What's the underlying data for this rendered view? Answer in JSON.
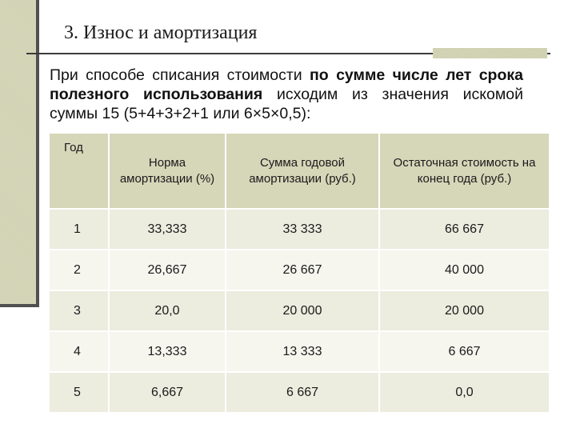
{
  "slide": {
    "title": "3. Износ и амортизация",
    "intro": {
      "part1": "При способе списания стоимости ",
      "bold1": "по сумме числе лет срока полезного использования",
      "part2": " исходим из значения искомой суммы 15 (5+4+3+2+1 или 6×5×0,5):"
    }
  },
  "table": {
    "headers": [
      "Год",
      "Норма амортизации (%)",
      "Сумма годовой амортизации (руб.)",
      "Остаточная стоимость на конец года (руб.)"
    ],
    "rows": [
      [
        "1",
        "33,333",
        "33 333",
        "66 667"
      ],
      [
        "2",
        "26,667",
        "26 667",
        "40 000"
      ],
      [
        "3",
        "20,0",
        "20 000",
        "20 000"
      ],
      [
        "4",
        "13,333",
        "13 333",
        "6 667"
      ],
      [
        "5",
        "6,667",
        "6 667",
        "0,0"
      ]
    ]
  }
}
